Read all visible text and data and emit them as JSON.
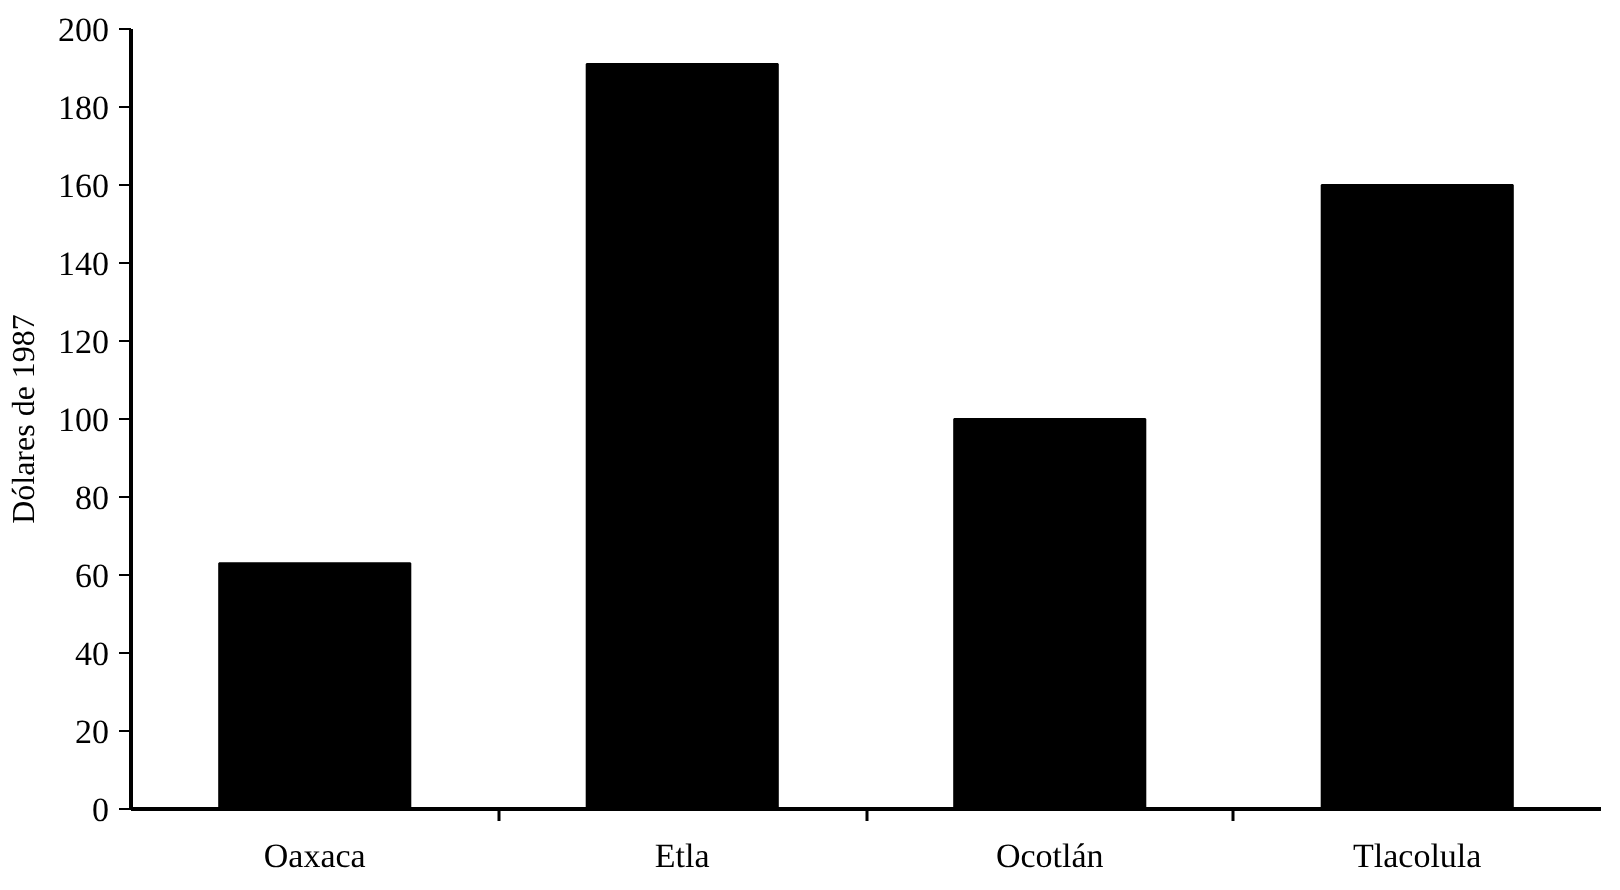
{
  "chart_data": {
    "type": "bar",
    "ylabel": "Dólares de 1987",
    "categories": [
      "Oaxaca",
      "Etla",
      "Ocotlán",
      "Tlacolula"
    ],
    "values": [
      63,
      191,
      100,
      160
    ],
    "color": "#000000",
    "ylim": [
      0,
      200
    ],
    "yticks": [
      0,
      20,
      40,
      60,
      80,
      100,
      120,
      140,
      160,
      180,
      200
    ],
    "grid": false
  }
}
